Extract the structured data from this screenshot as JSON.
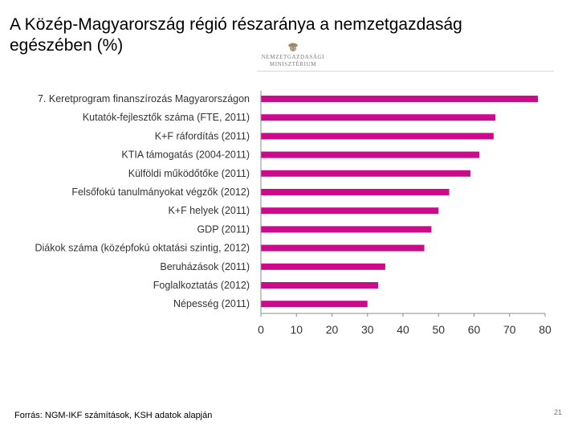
{
  "title": "A Közép-Magyarország régió részaránya a nemzetgazdaság egészében (%)",
  "logo": {
    "line1": "NEMZETGAZDASÁGI",
    "line2": "MINISZTÉRIUM"
  },
  "footer": {
    "source": "Forrás: NGM-IKF számítások, KSH adatok alapján",
    "page_number": "21"
  },
  "colors": {
    "bar": "#cc0b8c",
    "axis": "#8c8c8c"
  },
  "chart_data": {
    "type": "bar",
    "orientation": "horizontal",
    "title": "",
    "xlabel": "",
    "ylabel": "",
    "xlim": [
      0,
      80
    ],
    "ticks": [
      0,
      10,
      20,
      30,
      40,
      50,
      60,
      70,
      80
    ],
    "grid": false,
    "categories": [
      "7. Keretprogram finanszírozás Magyarországon",
      "Kutatók-fejlesztők száma (FTE, 2011)",
      "K+F ráfordítás (2011)",
      "KTIA támogatás (2004-2011)",
      "Külföldi működőtőke (2011)",
      "Felsőfokú tanulmányokat végzők (2012)",
      "K+F helyek (2011)",
      "GDP (2011)",
      "Diákok száma (középfokú oktatási szintig, 2012)",
      "Beruházások (2011)",
      "Foglalkoztatás (2012)",
      "Népesség (2011)"
    ],
    "values": [
      78,
      66,
      65.5,
      61.5,
      59,
      53,
      50,
      48,
      46,
      35,
      33,
      30
    ]
  }
}
